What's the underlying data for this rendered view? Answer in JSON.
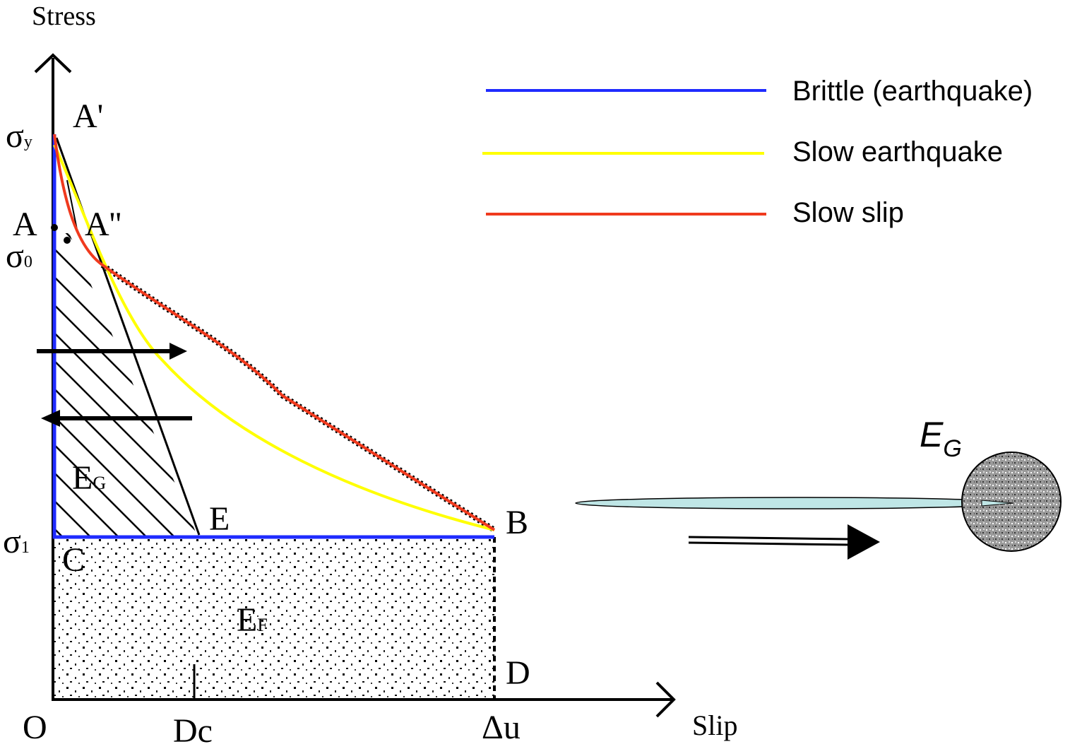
{
  "axes": {
    "y_label": "Stress",
    "x_label": "Slip"
  },
  "x_points": {
    "origin": "O",
    "dc": "Dc",
    "du": "Δu"
  },
  "y_points": {
    "sigma_y": {
      "symbol": "σ",
      "sub": "y"
    },
    "sigma_0": {
      "symbol": "σ",
      "sub": "0"
    },
    "sigma_1": {
      "symbol": "σ",
      "sub": "1"
    }
  },
  "points": {
    "a_prime": "A'",
    "a": "A",
    "a_double_prime": "A''",
    "c": "C",
    "e": "E",
    "b": "B",
    "d": "D"
  },
  "areas": {
    "eg": {
      "symbol": "E",
      "sub": "G"
    },
    "ef": {
      "symbol": "E",
      "sub": "F"
    }
  },
  "legend": [
    {
      "name": "Brittle (earthquake)",
      "color": "#1f2bff"
    },
    {
      "name": "Slow earthquake",
      "color": "#ffff00"
    },
    {
      "name": "Slow slip",
      "color": "#f03a1e"
    }
  ],
  "sink_label": {
    "symbol": "E",
    "sub": "G"
  }
}
